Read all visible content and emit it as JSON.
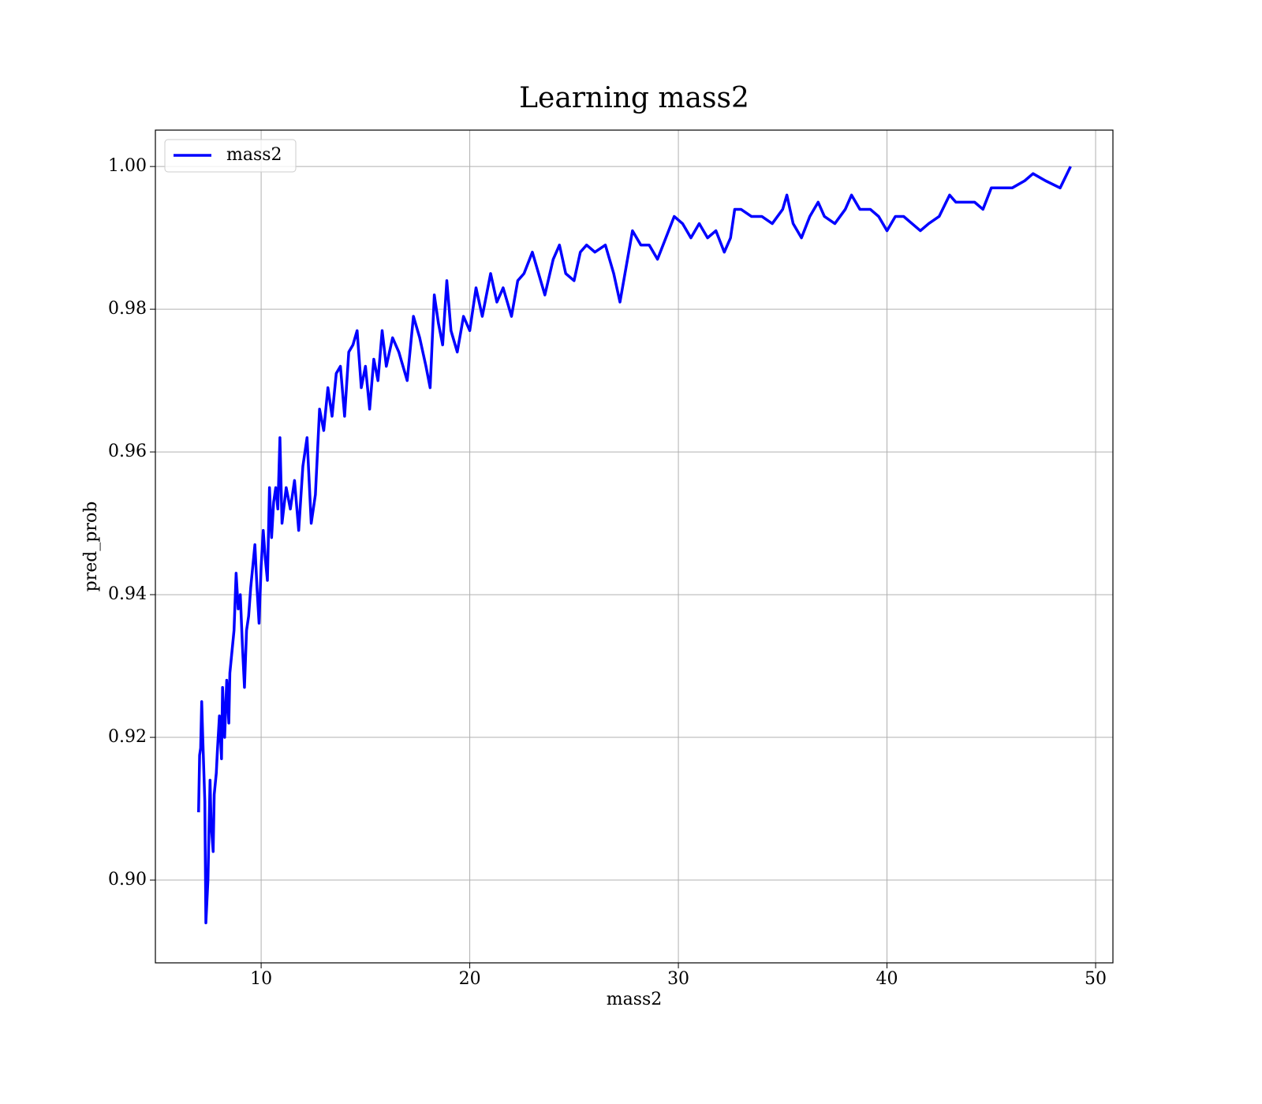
{
  "chart_data": {
    "type": "line",
    "title": "Learning mass2",
    "x_label": "mass2",
    "y_label": "pred_prob",
    "x": [
      7.0,
      7.05,
      7.1,
      7.15,
      7.2,
      7.3,
      7.35,
      7.45,
      7.55,
      7.6,
      7.7,
      7.75,
      7.85,
      7.9,
      8.0,
      8.1,
      8.15,
      8.25,
      8.35,
      8.45,
      8.5,
      8.6,
      8.7,
      8.8,
      8.9,
      9.0,
      9.1,
      9.2,
      9.3,
      9.4,
      9.5,
      9.6,
      9.7,
      9.8,
      9.9,
      10.0,
      10.1,
      10.2,
      10.3,
      10.4,
      10.5,
      10.6,
      10.7,
      10.8,
      10.9,
      11.0,
      11.2,
      11.4,
      11.6,
      11.8,
      12.0,
      12.2,
      12.4,
      12.6,
      12.8,
      13.0,
      13.2,
      13.4,
      13.6,
      13.8,
      14.0,
      14.2,
      14.4,
      14.6,
      14.8,
      15.0,
      15.2,
      15.4,
      15.6,
      15.8,
      16.0,
      16.3,
      16.6,
      17.0,
      17.3,
      17.6,
      17.9,
      18.1,
      18.3,
      18.5,
      18.7,
      18.9,
      19.1,
      19.4,
      19.7,
      20.0,
      20.3,
      20.6,
      21.0,
      21.3,
      21.6,
      22.0,
      22.3,
      22.6,
      23.0,
      23.3,
      23.6,
      24.0,
      24.3,
      24.6,
      25.0,
      25.3,
      25.6,
      26.0,
      26.5,
      26.9,
      27.2,
      27.5,
      27.8,
      28.2,
      28.6,
      29.0,
      29.4,
      29.8,
      30.2,
      30.6,
      31.0,
      31.4,
      31.8,
      32.2,
      32.5,
      32.7,
      33.0,
      33.5,
      34.0,
      34.5,
      35.0,
      35.2,
      35.5,
      35.9,
      36.3,
      36.7,
      37.0,
      37.5,
      38.0,
      38.3,
      38.7,
      39.2,
      39.6,
      40.0,
      40.4,
      40.8,
      41.2,
      41.6,
      42.0,
      42.5,
      43.0,
      43.3,
      43.7,
      44.2,
      44.6,
      45.0,
      45.5,
      46.0,
      46.6,
      47.0,
      47.6,
      48.3,
      48.8
    ],
    "series": [
      {
        "name": "mass2",
        "color": "#0000ff",
        "values": [
          0.9095,
          0.9175,
          0.9185,
          0.925,
          0.92,
          0.911,
          0.894,
          0.9,
          0.914,
          0.908,
          0.904,
          0.912,
          0.915,
          0.918,
          0.923,
          0.917,
          0.927,
          0.92,
          0.928,
          0.922,
          0.929,
          0.932,
          0.935,
          0.943,
          0.938,
          0.94,
          0.933,
          0.927,
          0.935,
          0.937,
          0.941,
          0.944,
          0.947,
          0.941,
          0.936,
          0.944,
          0.949,
          0.945,
          0.942,
          0.955,
          0.948,
          0.953,
          0.955,
          0.952,
          0.962,
          0.95,
          0.955,
          0.952,
          0.956,
          0.949,
          0.958,
          0.962,
          0.95,
          0.954,
          0.966,
          0.963,
          0.969,
          0.965,
          0.971,
          0.972,
          0.965,
          0.974,
          0.975,
          0.977,
          0.969,
          0.972,
          0.966,
          0.973,
          0.97,
          0.977,
          0.972,
          0.976,
          0.974,
          0.97,
          0.979,
          0.976,
          0.972,
          0.969,
          0.982,
          0.978,
          0.975,
          0.984,
          0.977,
          0.974,
          0.979,
          0.977,
          0.983,
          0.979,
          0.985,
          0.981,
          0.983,
          0.979,
          0.984,
          0.985,
          0.988,
          0.985,
          0.982,
          0.987,
          0.989,
          0.985,
          0.984,
          0.988,
          0.989,
          0.988,
          0.989,
          0.985,
          0.981,
          0.986,
          0.991,
          0.989,
          0.989,
          0.987,
          0.99,
          0.993,
          0.992,
          0.99,
          0.992,
          0.99,
          0.991,
          0.988,
          0.99,
          0.994,
          0.994,
          0.993,
          0.993,
          0.992,
          0.994,
          0.996,
          0.992,
          0.99,
          0.993,
          0.995,
          0.993,
          0.992,
          0.994,
          0.996,
          0.994,
          0.994,
          0.993,
          0.991,
          0.993,
          0.993,
          0.992,
          0.991,
          0.992,
          0.993,
          0.996,
          0.995,
          0.995,
          0.995,
          0.994,
          0.997,
          0.997,
          0.997,
          0.998,
          0.999,
          0.998,
          0.997,
          1.0
        ]
      }
    ],
    "xlim": [
      4.93,
      50.83
    ],
    "xticks": [
      10,
      20,
      30,
      40,
      50
    ],
    "ylim": [
      0.8884,
      1.0051
    ],
    "yticks": [
      {
        "value": 0.9,
        "label": "0.90"
      },
      0.92,
      0.94,
      0.96,
      0.98,
      {
        "value": 1.0,
        "label": "1.00"
      }
    ],
    "grid": true,
    "legend": "upper left"
  }
}
